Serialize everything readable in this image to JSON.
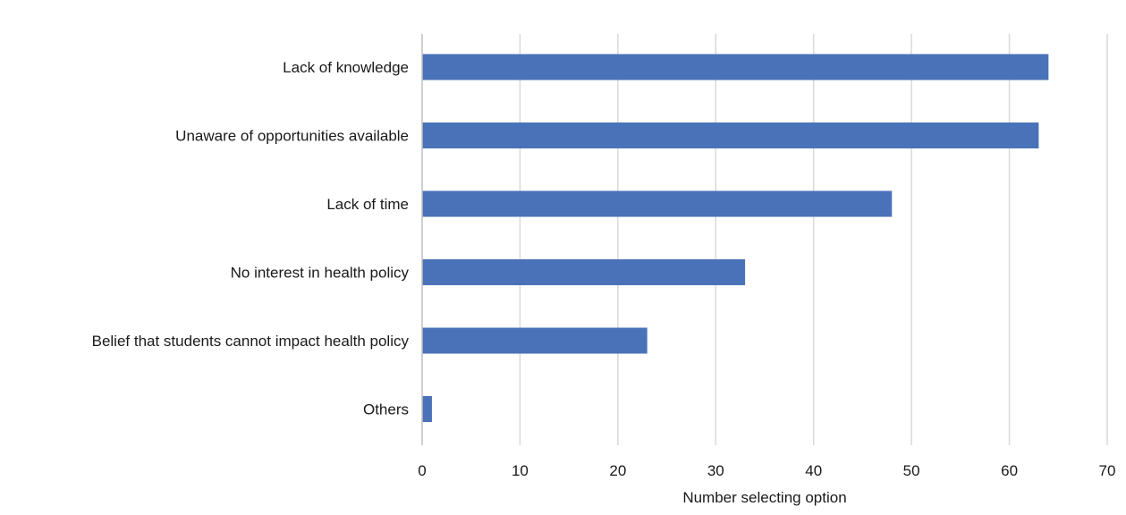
{
  "chart_data": {
    "type": "bar",
    "orientation": "horizontal",
    "title": "",
    "xlabel": "Number selecting option",
    "ylabel": "",
    "xlim": [
      0,
      70
    ],
    "x_ticks": [
      0,
      10,
      20,
      30,
      40,
      50,
      60,
      70
    ],
    "grid": "vertical",
    "categories": [
      "Lack of knowledge",
      "Unaware of opportunities available",
      "Lack of time",
      "No interest in health policy",
      "Belief that students cannot impact health policy",
      "Others"
    ],
    "values": [
      64,
      63,
      48,
      33,
      23,
      1
    ],
    "colors": {
      "bar": "#4a72b8",
      "grid": "#d9d9d9",
      "axis": "#bfbfbf",
      "text": "#1a1a1a"
    }
  }
}
